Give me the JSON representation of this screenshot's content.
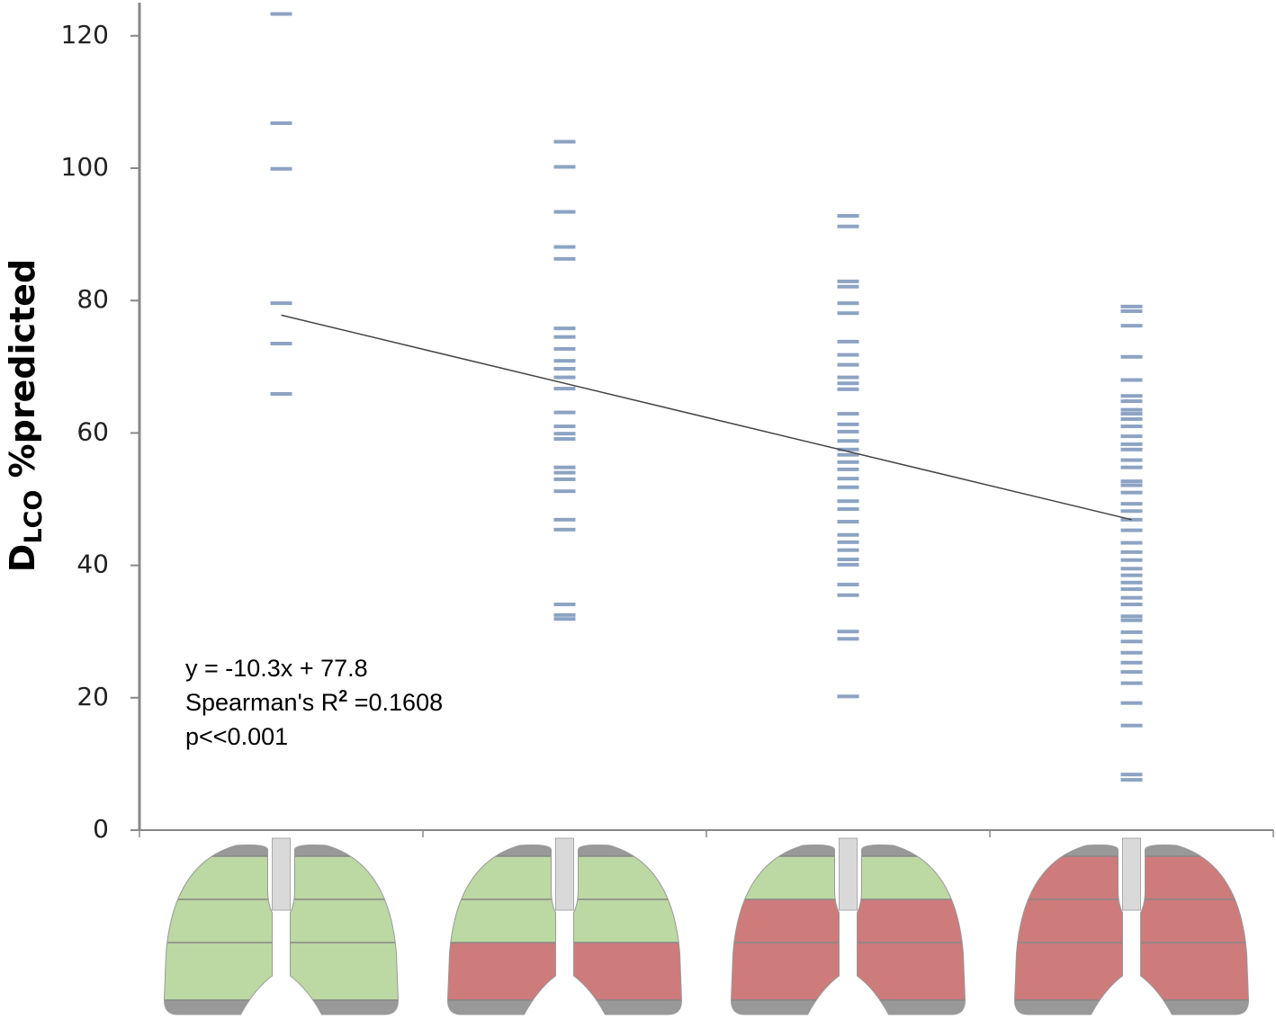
{
  "chart_data": {
    "type": "strip",
    "y_label": "D",
    "y_label_sub": "LCO",
    "y_label_rest": " %predicted",
    "categories": [
      null,
      null,
      null,
      null
    ],
    "values": [
      [
        123.3,
        106.8,
        99.9,
        79.6,
        73.5,
        65.9
      ],
      [
        104,
        100.2,
        93.4,
        88.1,
        86.3,
        75.8,
        74.5,
        72.7,
        70.9,
        69.7,
        68.4,
        66.7,
        63.1,
        61.0,
        59.9,
        59.1,
        54.8,
        54.0,
        53.0,
        51.2,
        46.9,
        45.4,
        34.1,
        32.5,
        31.9
      ],
      [
        92.8,
        91.2,
        82.9,
        82.1,
        79.6,
        78.1,
        73.8,
        71.8,
        70.3,
        68.4,
        67.5,
        66.6,
        62.9,
        61.3,
        60.2,
        58.8,
        57.5,
        56.7,
        55.6,
        54.5,
        53.1,
        51.8,
        49.7,
        48.5,
        46.6,
        44.6,
        43.5,
        42.3,
        40.9,
        40.1,
        37.1,
        35.5,
        30.0,
        28.9,
        20.2
      ],
      [
        79.1,
        78.4,
        76.2,
        71.5,
        68.0,
        65.6,
        64.8,
        63.5,
        62.9,
        62.1,
        61.0,
        59.5,
        58.3,
        57.5,
        55.9,
        54.8,
        52.7,
        52.1,
        51.0,
        49.3,
        48.2,
        46.9,
        45.3,
        43.4,
        42.0,
        40.8,
        39.5,
        38.5,
        37.4,
        36.4,
        35.1,
        34.1,
        32.3,
        31.7,
        29.9,
        28.5,
        26.8,
        25.3,
        23.9,
        22.2,
        19.2,
        15.8,
        8.4,
        7.6
      ]
    ],
    "color": "#4f72a3",
    "trend": {
      "slope": -10.3,
      "intercept": 77.8,
      "color": "#444444"
    },
    "annotation": [
      "y = -10.3x + 77.8",
      "Spearman's R",
      "2",
      " =0.1608",
      "p<<0.001"
    ],
    "ylim": [
      0,
      125
    ],
    "yticks": [
      0,
      20,
      40,
      60,
      80,
      100,
      120
    ]
  }
}
